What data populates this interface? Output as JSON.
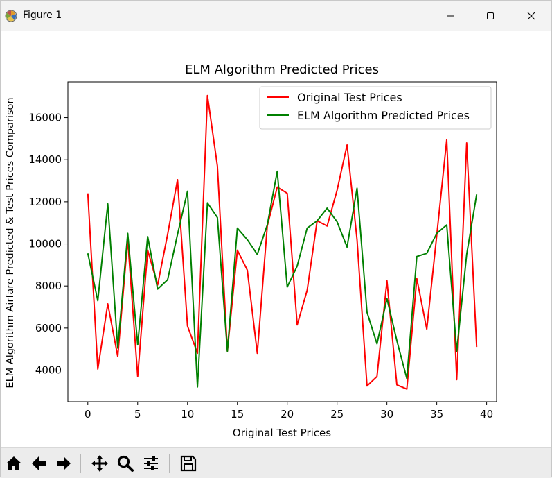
{
  "window": {
    "title": "Figure 1",
    "icons": {
      "app": "matplotlib-logo-icon",
      "minimize": "minimize-icon",
      "maximize": "maximize-icon",
      "close": "close-icon"
    }
  },
  "toolbar": {
    "tools": [
      {
        "name": "home",
        "icon": "home-icon"
      },
      {
        "name": "back",
        "icon": "back-arrow-icon"
      },
      {
        "name": "forward",
        "icon": "forward-arrow-icon"
      },
      {
        "name": "pan",
        "icon": "pan-icon"
      },
      {
        "name": "zoom",
        "icon": "zoom-icon"
      },
      {
        "name": "configure-subplots",
        "icon": "sliders-icon"
      },
      {
        "name": "save",
        "icon": "save-icon"
      }
    ]
  },
  "chart_data": {
    "type": "line",
    "title": "ELM Algorithm Predicted Prices",
    "xlabel": "Original Test Prices",
    "ylabel": "ELM Algorithm Airfare Predicted & Test Prices Comparison",
    "xlim": [
      -2,
      41
    ],
    "ylim": [
      2500,
      17700
    ],
    "xticks": [
      0,
      5,
      10,
      15,
      20,
      25,
      30,
      35,
      40
    ],
    "yticks": [
      4000,
      6000,
      8000,
      10000,
      12000,
      14000,
      16000
    ],
    "xtick_labels": [
      "0",
      "5",
      "10",
      "15",
      "20",
      "25",
      "30",
      "35",
      "40"
    ],
    "ytick_labels": [
      "4000",
      "6000",
      "8000",
      "10000",
      "12000",
      "14000",
      "16000"
    ],
    "grid": false,
    "legend_position": "top-right",
    "x": [
      0,
      1,
      2,
      3,
      4,
      5,
      6,
      7,
      8,
      9,
      10,
      11,
      12,
      13,
      14,
      15,
      16,
      17,
      18,
      19,
      20,
      21,
      22,
      23,
      24,
      25,
      26,
      27,
      28,
      29,
      30,
      31,
      32,
      33,
      34,
      35,
      36,
      37,
      38,
      39
    ],
    "series": [
      {
        "name": "Original Test Prices",
        "color": "#ff0000",
        "values": [
          12400,
          4050,
          7150,
          4650,
          10200,
          3700,
          9700,
          8050,
          10450,
          13050,
          6100,
          4800,
          17050,
          13700,
          4900,
          9700,
          8750,
          4800,
          10850,
          12700,
          12400,
          6150,
          7800,
          11100,
          10850,
          12550,
          14700,
          10200,
          3250,
          3700,
          8250,
          3300,
          3100,
          8350,
          5950,
          10400,
          14950,
          3550,
          14800,
          5100
        ]
      },
      {
        "name": "ELM Algorithm Predicted Prices",
        "color": "#008000",
        "values": [
          9550,
          7300,
          11900,
          5050,
          10500,
          5200,
          10350,
          7850,
          8300,
          10450,
          12500,
          3200,
          11950,
          11250,
          4900,
          10750,
          10200,
          9500,
          10900,
          13450,
          7950,
          8950,
          10750,
          11100,
          11700,
          11050,
          9850,
          12650,
          6750,
          5250,
          7400,
          5400,
          3600,
          9400,
          9550,
          10500,
          10900,
          4900,
          9500,
          12350
        ]
      }
    ]
  }
}
